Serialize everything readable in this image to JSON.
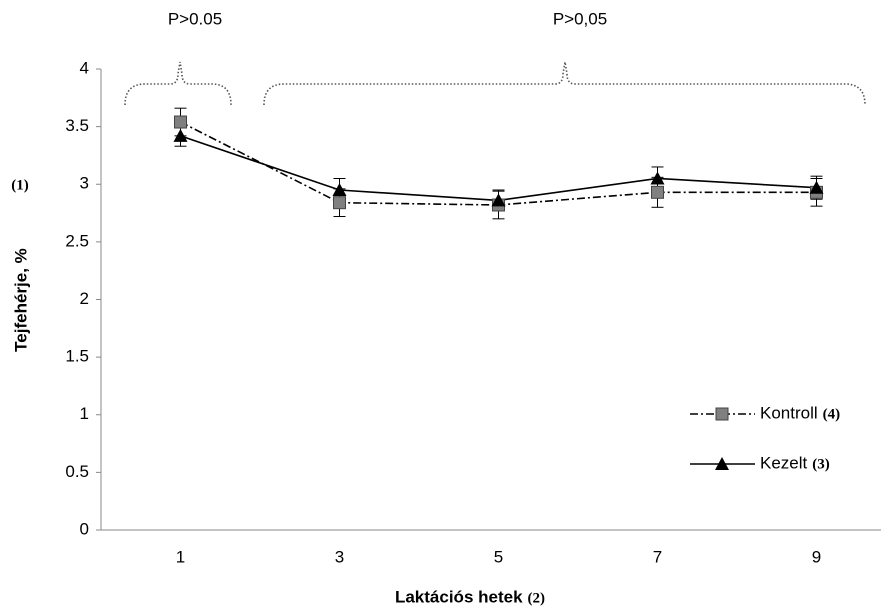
{
  "chart_data": {
    "type": "line",
    "annotations": [
      "P>0.05",
      "P>0,05"
    ],
    "y_label": "Tejfehérje, %",
    "y_label_note": "(1)",
    "x_label": "Laktációs hetek",
    "x_label_note": "(2)",
    "categories": [
      "1",
      "3",
      "5",
      "7",
      "9"
    ],
    "ylim": [
      0,
      4
    ],
    "yticks": [
      0,
      0.5,
      1,
      1.5,
      2,
      2.5,
      3,
      3.5,
      4
    ],
    "series": [
      {
        "name": "Kontroll",
        "name_note": "(4)",
        "color": "#808080",
        "line_style": "dashdot",
        "marker": "square",
        "values": [
          3.54,
          2.84,
          2.82,
          2.93,
          2.93
        ],
        "errors": [
          0.12,
          0.12,
          0.12,
          0.13,
          0.12
        ]
      },
      {
        "name": "Kezelt",
        "name_note": "(3)",
        "color": "#000000",
        "line_style": "solid",
        "marker": "triangle",
        "values": [
          3.42,
          2.95,
          2.86,
          3.05,
          2.97
        ],
        "errors": [
          0.09,
          0.1,
          0.09,
          0.1,
          0.1
        ]
      }
    ]
  }
}
